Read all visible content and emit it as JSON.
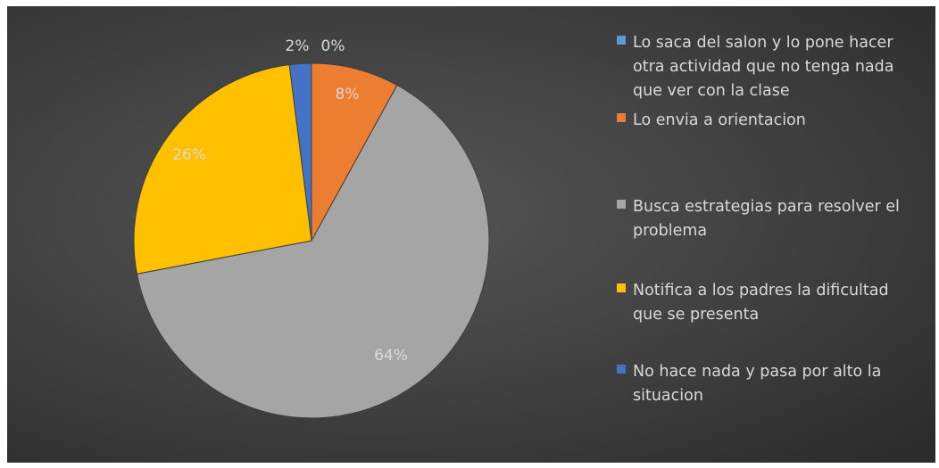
{
  "chart_data": {
    "type": "pie",
    "title": "",
    "slices": [
      {
        "name": "No hace nada y pasa por alto la situacion",
        "value": 2,
        "label": "2%",
        "color": "#4472C4"
      },
      {
        "name": "Lo saca del salon y lo pone hacer otra actividad que no tenga nada que ver con la clase",
        "value": 0,
        "label": "0%",
        "color": "#5B9BD5"
      },
      {
        "name": "Lo envia a orientacion",
        "value": 8,
        "label": "8%",
        "color": "#ED7D31"
      },
      {
        "name": "Busca estrategias para resolver el problema",
        "value": 64,
        "label": "64%",
        "color": "#A5A5A5"
      },
      {
        "name": "Notifica a los padres la dificultad que se presenta",
        "value": 26,
        "label": "26%",
        "color": "#FFC000"
      }
    ],
    "legend": {
      "position": "right",
      "entries": [
        {
          "text": "Lo saca del salon y lo pone hacer otra actividad que no tenga nada que ver con la clase",
          "color": "#5B9BD5"
        },
        {
          "text": "Lo envia a orientacion",
          "color": "#ED7D31"
        },
        {
          "text": "Busca estrategias para resolver el problema",
          "color": "#A5A5A5"
        },
        {
          "text": "Notifica a los padres la dificultad que se presenta",
          "color": "#FFC000"
        },
        {
          "text": "No hace nada y pasa por alto la situacion",
          "color": "#4472C4"
        }
      ]
    },
    "background_color": "#404040",
    "label_color": "#d9d9d9"
  }
}
